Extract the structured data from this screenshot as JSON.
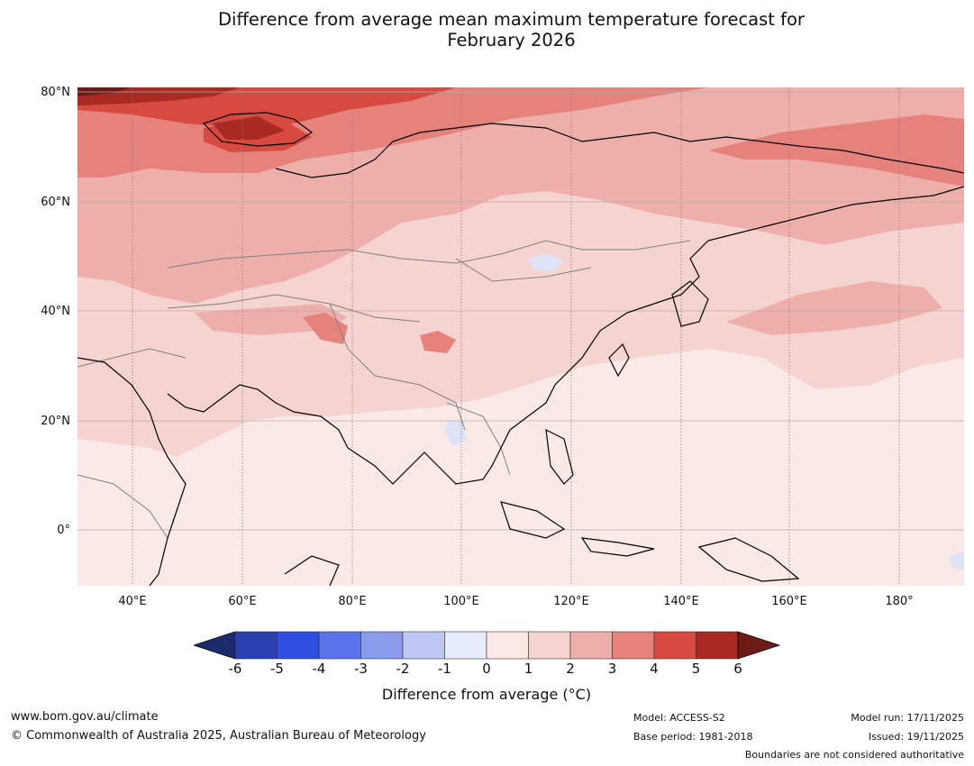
{
  "title": {
    "line1": "Difference from average mean maximum temperature forecast for",
    "line2": "February 2026"
  },
  "map": {
    "lat_labels": [
      "80°N",
      "60°N",
      "40°N",
      "20°N",
      "0°"
    ],
    "lon_labels": [
      "40°E",
      "60°E",
      "80°E",
      "100°E",
      "120°E",
      "140°E",
      "160°E",
      "180°"
    ],
    "features": [
      "temperature-anomaly-field",
      "coastlines",
      "country-boundaries",
      "graticule"
    ]
  },
  "colorbar": {
    "ticks": [
      "-6",
      "-5",
      "-4",
      "-3",
      "-2",
      "-1",
      "0",
      "1",
      "2",
      "3",
      "4",
      "5",
      "6"
    ],
    "colors": [
      "#1c2a6e",
      "#2a3fb0",
      "#2f4fe0",
      "#5b73e8",
      "#8a9aec",
      "#bfc8f5",
      "#e8ebfa",
      "#fbe9e7",
      "#f5d3d0",
      "#eeafab",
      "#e6827c",
      "#d64a40",
      "#a82a22",
      "#6e1a17"
    ],
    "label": "Difference from average (°C)"
  },
  "footer": {
    "website": "www.bom.gov.au/climate",
    "copyright": "© Commonwealth of Australia 2025, Australian Bureau of Meteorology",
    "model": "Model: ACCESS-S2",
    "base_period": "Base period: 1981-2018",
    "model_run": "Model run: 17/11/2025",
    "issued": "Issued: 19/11/2025",
    "disclaimer": "Boundaries are not considered authoritative"
  }
}
